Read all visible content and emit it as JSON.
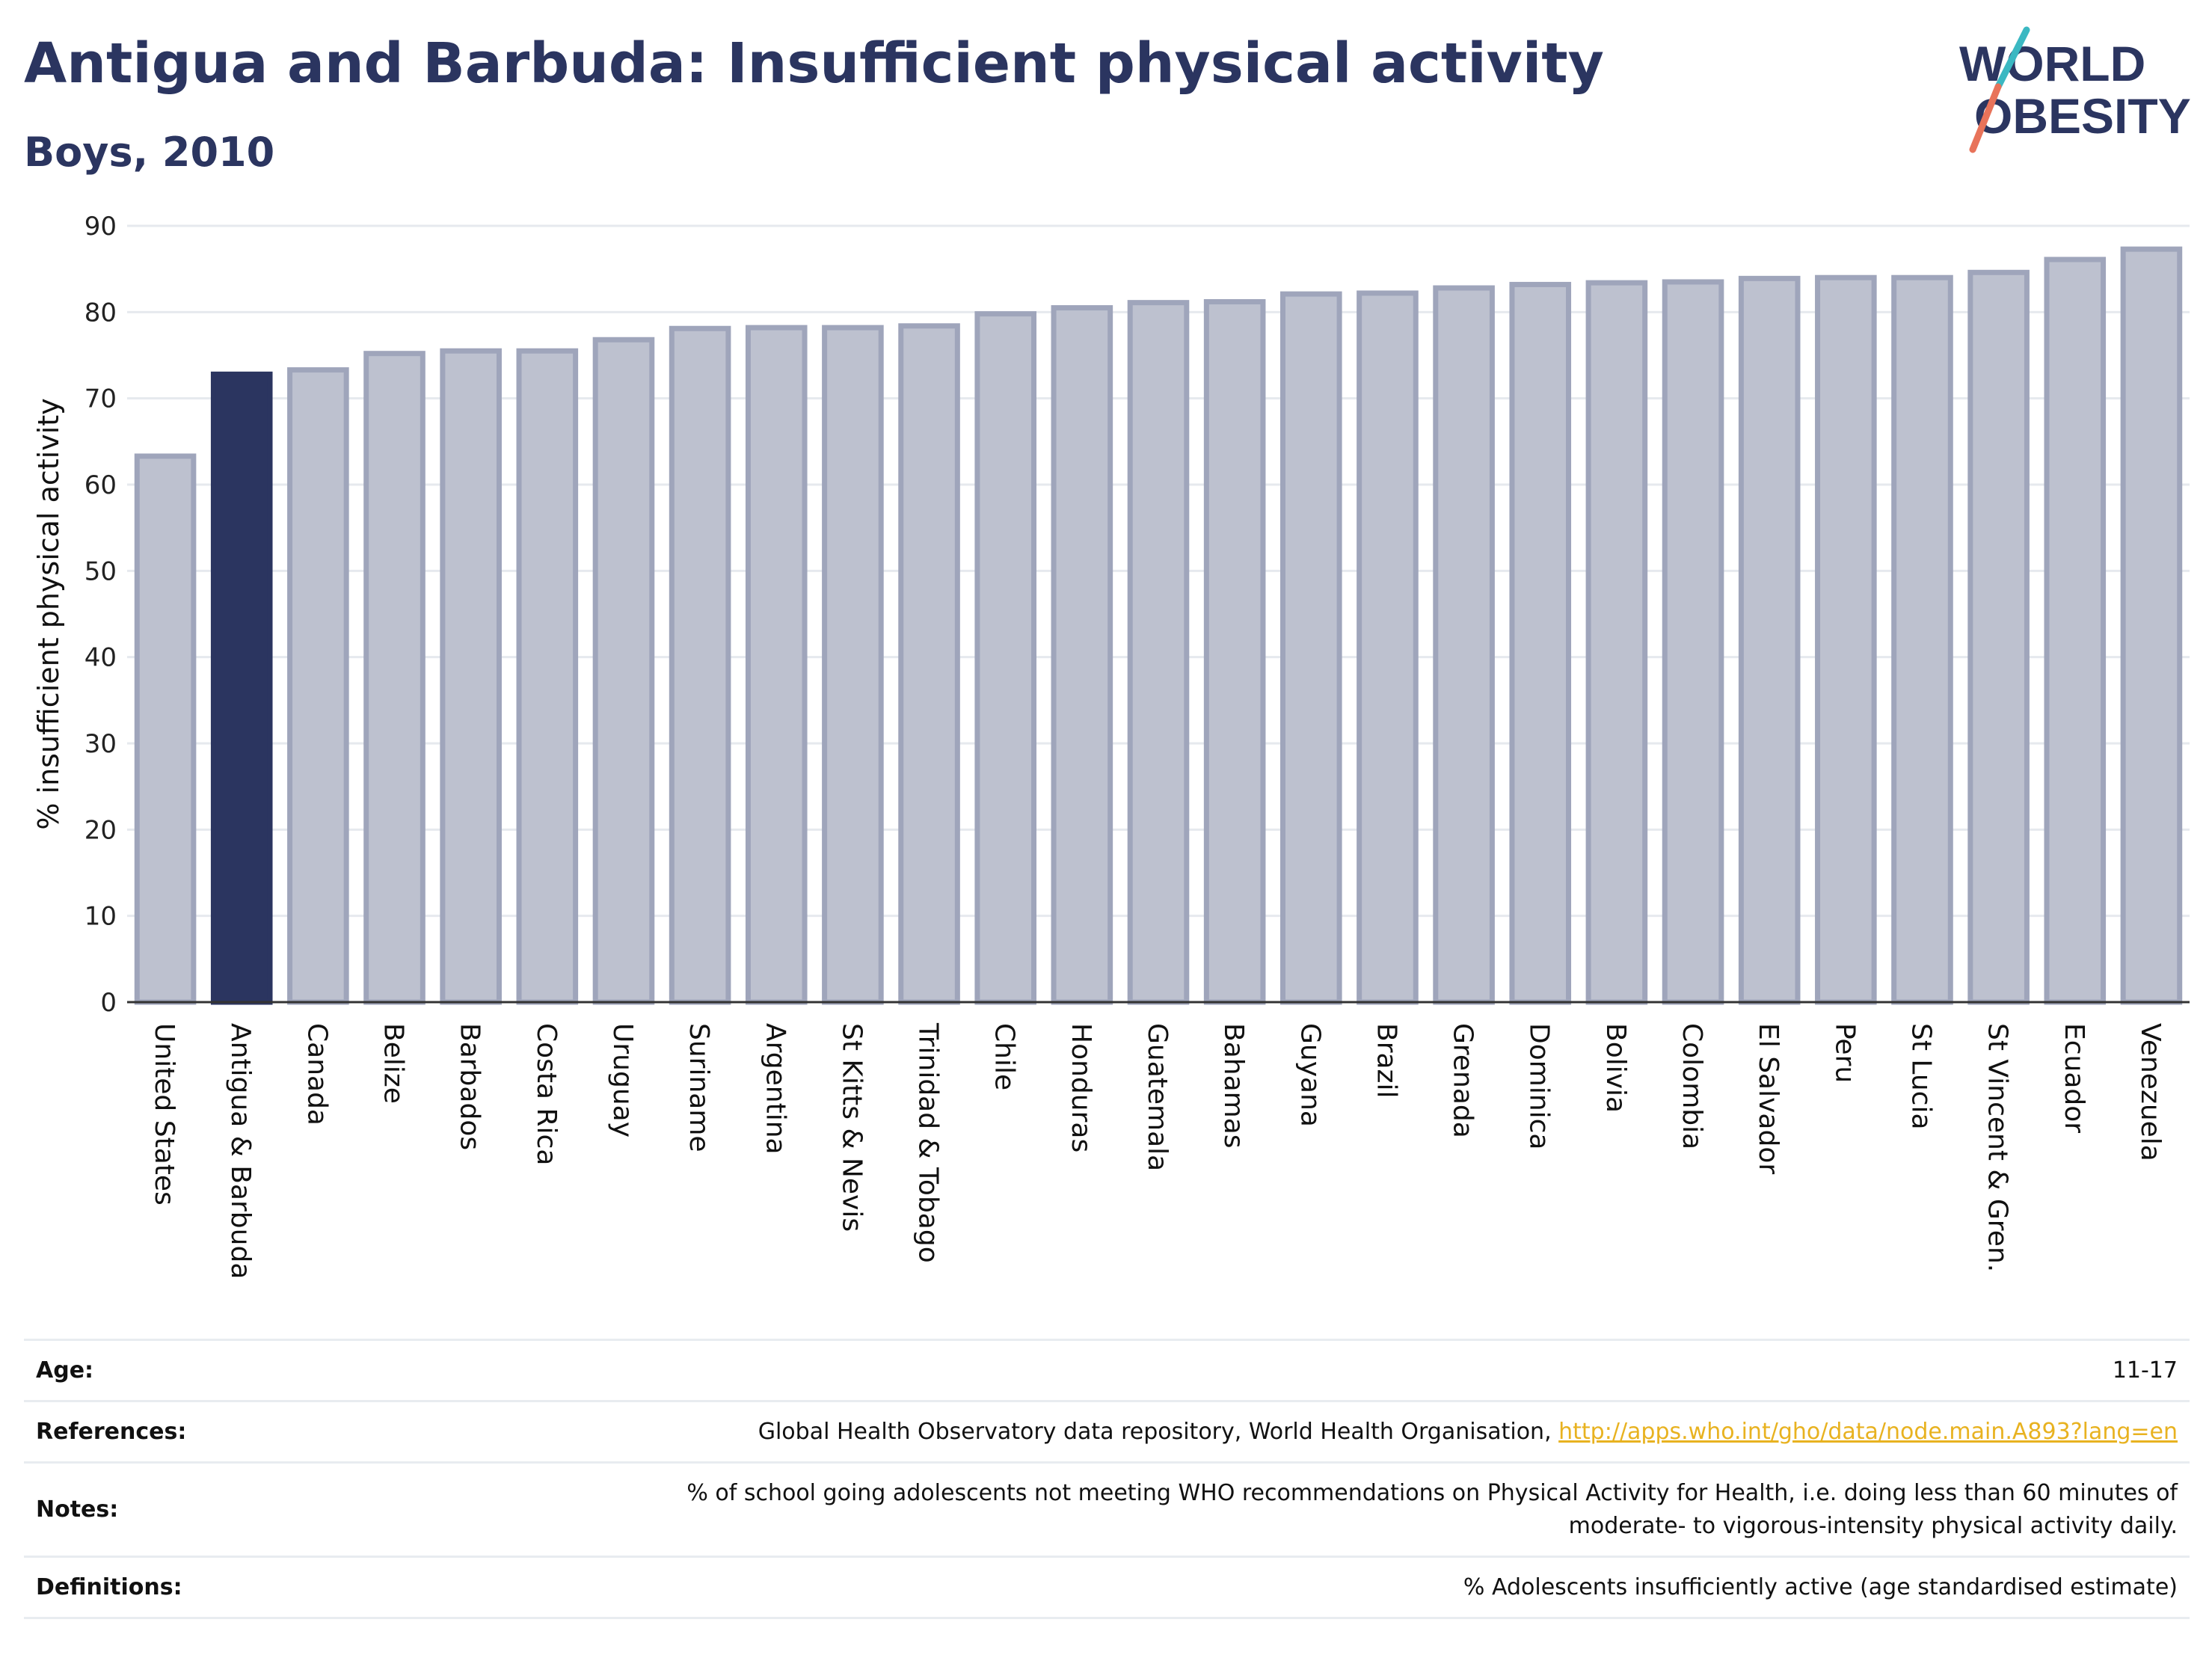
{
  "header": {
    "title": "Antigua and Barbuda: Insufficient physical activity",
    "subtitle": "Boys, 2010"
  },
  "logo": {
    "line1": "WORLD",
    "line2": "OBESITY"
  },
  "colors": {
    "highlight": "#2b3560",
    "bar_fill": "#bdc1cf",
    "bar_stroke": "#9fa5bb",
    "grid": "#e6e9ee",
    "axis": "#333333",
    "logo_teal": "#3bb8c2",
    "logo_coral": "#e8735a",
    "link": "#e8b220"
  },
  "chart_data": {
    "type": "bar",
    "ylabel": "% insufficient physical activity",
    "xlabel": "",
    "ylim": [
      0,
      90
    ],
    "yticks": [
      0,
      10,
      20,
      30,
      40,
      50,
      60,
      70,
      80,
      90
    ],
    "grid": true,
    "highlight_category": "Antigua & Barbuda",
    "categories": [
      "United States",
      "Antigua & Barbuda",
      "Canada",
      "Belize",
      "Barbados",
      "Costa Rica",
      "Uruguay",
      "Suriname",
      "Argentina",
      "St Kitts & Nevis",
      "Trinidad & Tobago",
      "Chile",
      "Honduras",
      "Guatemala",
      "Bahamas",
      "Guyana",
      "Brazil",
      "Grenada",
      "Dominica",
      "Bolivia",
      "Colombia",
      "El Salvador",
      "Peru",
      "St Lucia",
      "St Vincent & Gren.",
      "Ecuador",
      "Venezuela"
    ],
    "values": [
      63.3,
      72.8,
      73.3,
      75.2,
      75.5,
      75.5,
      76.8,
      78.1,
      78.2,
      78.2,
      78.4,
      79.8,
      80.5,
      81.1,
      81.2,
      82.1,
      82.2,
      82.8,
      83.2,
      83.4,
      83.5,
      83.9,
      84.0,
      84.0,
      84.6,
      86.1,
      87.3
    ]
  },
  "meta": {
    "age_label": "Age:",
    "age_value": "11-17",
    "references_label": "References:",
    "references_text": "Global Health Observatory data repository, World Health Organisation, ",
    "references_link": "http://apps.who.int/gho/data/node.main.A893?lang=en",
    "notes_label": "Notes:",
    "notes_line1": "% of school going adolescents not meeting WHO recommendations on Physical Activity for Health, i.e. doing less than 60 minutes of",
    "notes_line2": "moderate- to vigorous-intensity physical activity daily.",
    "definitions_label": "Definitions:",
    "definitions_value": "% Adolescents insufficiently active (age standardised estimate)"
  }
}
